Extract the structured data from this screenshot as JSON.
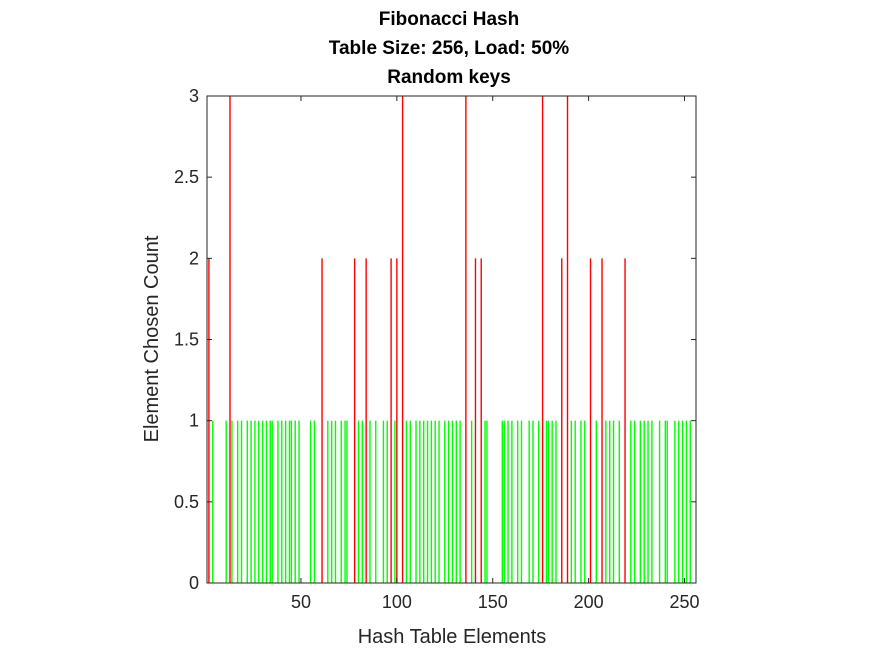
{
  "chart_data": {
    "type": "bar",
    "title": [
      "Fibonacci Hash",
      "Table Size: 256, Load: 50%",
      "Random keys"
    ],
    "xlabel": "Hash Table Elements",
    "ylabel": "Element Chosen Count",
    "xlim": [
      1,
      256
    ],
    "ylim": [
      0,
      3
    ],
    "xticks": [
      50,
      100,
      150,
      200,
      250
    ],
    "yticks": [
      0,
      0.5,
      1,
      1.5,
      2,
      2.5,
      3
    ],
    "ytick_labels": [
      "0",
      "0.5",
      "1",
      "1.5",
      "2",
      "2.5",
      "3"
    ],
    "grid": false,
    "colors": {
      "single": "#00ff00",
      "collision": "#ff0000"
    },
    "series": [
      {
        "color_key": "collision",
        "points": [
          [
            2,
            2
          ],
          [
            13,
            3
          ],
          [
            61,
            2
          ],
          [
            78,
            2
          ],
          [
            84,
            2
          ],
          [
            97,
            2
          ],
          [
            100,
            2
          ],
          [
            103,
            3
          ],
          [
            136,
            3
          ],
          [
            141,
            2
          ],
          [
            144,
            2
          ],
          [
            176,
            3
          ],
          [
            186,
            2
          ],
          [
            189,
            3
          ],
          [
            201,
            2
          ],
          [
            207,
            2
          ],
          [
            219,
            2
          ]
        ]
      },
      {
        "color_key": "single",
        "x": [
          4,
          11,
          14,
          17,
          19,
          22,
          24,
          26,
          28,
          30,
          32,
          34,
          35,
          38,
          40,
          42,
          44,
          45,
          47,
          49,
          55,
          57,
          64,
          66,
          68,
          71,
          73,
          74,
          80,
          82,
          86,
          89,
          93,
          95,
          99,
          105,
          107,
          110,
          112,
          114,
          116,
          118,
          120,
          122,
          125,
          127,
          129,
          131,
          133,
          139,
          146,
          147,
          155,
          156,
          158,
          160,
          163,
          165,
          169,
          171,
          174,
          178,
          179,
          181,
          183,
          191,
          193,
          196,
          198,
          204,
          209,
          211,
          213,
          216,
          222,
          224,
          227,
          229,
          231,
          233,
          237,
          240,
          241,
          245,
          247,
          249,
          251,
          253
        ]
      }
    ]
  }
}
